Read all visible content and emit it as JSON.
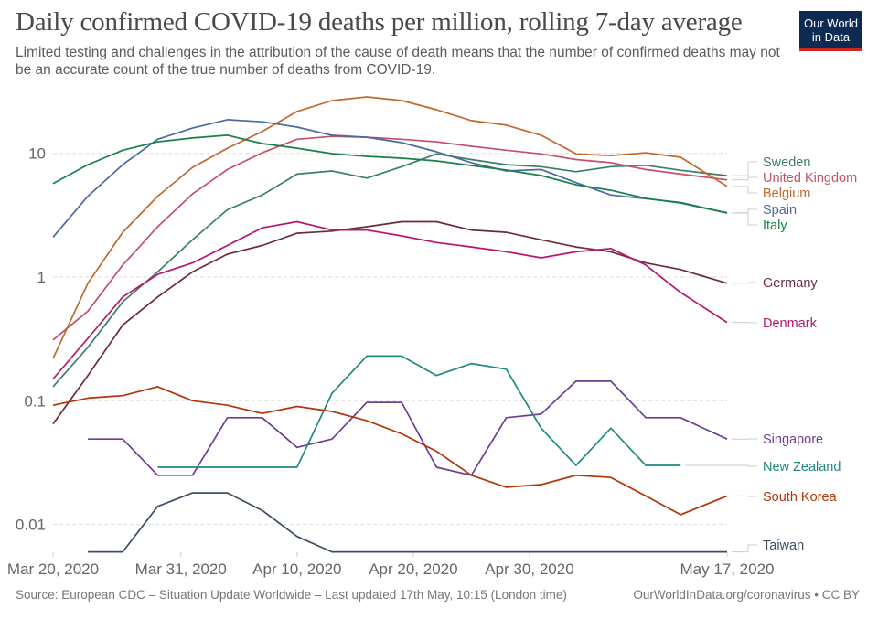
{
  "title": "Daily confirmed COVID-19 deaths per million, rolling 7-day average",
  "subtitle": "Limited testing and challenges in the attribution of the cause of death means that the number of confirmed deaths may not be an accurate count of the true number of deaths from COVID-19.",
  "logo": "Our World in Data",
  "logo_colors": {
    "background": "#0d2a52",
    "stripe": "#ce261e"
  },
  "footer": {
    "source": "Source: European CDC – Situation Update Worldwide – Last updated 17th May, 10:15 (London time)",
    "url": "OurWorldInData.org/coronavirus • CC BY"
  },
  "chart_data": {
    "type": "line",
    "title": "Daily confirmed COVID-19 deaths per million, rolling 7-day average",
    "xlabel": "",
    "ylabel": "",
    "y_scale": "log",
    "grid": "horizontal dashed",
    "legend": "right (line-end labels)",
    "x_tick_labels": [
      "Mar 20, 2020",
      "Mar 31, 2020",
      "Apr 10, 2020",
      "Apr 20, 2020",
      "Apr 30, 2020",
      "May 17, 2020"
    ],
    "x_ticks": [
      "2020-03-20",
      "2020-03-31",
      "2020-04-10",
      "2020-04-20",
      "2020-04-30",
      "2020-05-17"
    ],
    "y_tick_labels": [
      "10",
      "1",
      "0.1",
      "0.01"
    ],
    "y_ticks": [
      10,
      1,
      0.1,
      0.01
    ],
    "x": [
      "2020-03-20",
      "2020-03-23",
      "2020-03-26",
      "2020-03-29",
      "2020-04-01",
      "2020-04-04",
      "2020-04-07",
      "2020-04-10",
      "2020-04-13",
      "2020-04-16",
      "2020-04-19",
      "2020-04-22",
      "2020-04-25",
      "2020-04-28",
      "2020-05-01",
      "2020-05-04",
      "2020-05-07",
      "2020-05-10",
      "2020-05-13",
      "2020-05-17"
    ],
    "series": [
      {
        "name": "Sweden",
        "color": "#3a7f68",
        "values": [
          0.13,
          0.27,
          0.63,
          1.1,
          2.0,
          3.5,
          4.6,
          6.8,
          7.2,
          6.3,
          7.8,
          9.9,
          8.9,
          8.1,
          7.8,
          7.1,
          7.8,
          8.0,
          7.3,
          6.6
        ]
      },
      {
        "name": "United Kingdom",
        "color": "#c4506a",
        "values": [
          0.31,
          0.53,
          1.25,
          2.55,
          4.7,
          7.4,
          10.1,
          13.0,
          13.7,
          13.5,
          13.0,
          12.4,
          11.4,
          10.6,
          9.9,
          8.9,
          8.4,
          7.4,
          6.8,
          6.1
        ]
      },
      {
        "name": "Belgium",
        "color": "#c0692b",
        "values": [
          0.22,
          0.89,
          2.3,
          4.5,
          7.7,
          11.0,
          15.0,
          21.8,
          26.7,
          28.6,
          26.7,
          22.5,
          18.4,
          16.9,
          14.0,
          9.9,
          9.6,
          10.1,
          9.3,
          5.4
        ]
      },
      {
        "name": "Spain",
        "color": "#4c6a9c",
        "values": [
          2.1,
          4.5,
          8.1,
          13.0,
          16.0,
          18.7,
          18.0,
          16.3,
          14.0,
          13.5,
          12.2,
          10.3,
          8.4,
          7.2,
          7.4,
          5.8,
          4.6,
          4.3,
          4.0,
          3.3
        ]
      },
      {
        "name": "Italy",
        "color": "#16824a",
        "values": [
          5.7,
          8.1,
          10.6,
          12.4,
          13.3,
          14.0,
          12.0,
          11.0,
          9.95,
          9.46,
          9.14,
          8.69,
          7.98,
          7.32,
          6.61,
          5.57,
          5.03,
          4.32,
          3.97,
          3.29
        ]
      },
      {
        "name": "Germany",
        "color": "#6b2d3a",
        "values": [
          0.065,
          0.16,
          0.41,
          0.69,
          1.1,
          1.53,
          1.8,
          2.26,
          2.35,
          2.55,
          2.8,
          2.8,
          2.4,
          2.3,
          2.0,
          1.75,
          1.6,
          1.3,
          1.15,
          0.89
        ]
      },
      {
        "name": "Denmark",
        "color": "#b8176d",
        "values": [
          0.15,
          0.32,
          0.69,
          1.05,
          1.3,
          1.8,
          2.5,
          2.8,
          2.4,
          2.4,
          2.15,
          1.9,
          1.75,
          1.6,
          1.43,
          1.6,
          1.7,
          1.25,
          0.75,
          0.43
        ]
      },
      {
        "name": "Singapore",
        "color": "#6d3e91",
        "values": [
          null,
          0.049,
          0.049,
          0.025,
          0.025,
          0.073,
          0.073,
          0.042,
          0.049,
          0.097,
          0.097,
          0.029,
          0.025,
          0.073,
          0.078,
          0.144,
          0.144,
          0.073,
          0.073,
          0.049
        ]
      },
      {
        "name": "New Zealand",
        "color": "#1f8a80",
        "values": [
          null,
          null,
          null,
          0.029,
          0.029,
          0.029,
          0.029,
          0.029,
          0.115,
          0.23,
          0.23,
          0.16,
          0.2,
          0.18,
          0.06,
          0.03,
          0.06,
          0.03,
          0.03,
          null
        ]
      },
      {
        "name": "South Korea",
        "color": "#b13507",
        "values": [
          0.092,
          0.105,
          0.11,
          0.13,
          0.1,
          0.092,
          0.079,
          0.09,
          0.082,
          0.069,
          0.054,
          0.039,
          0.025,
          0.02,
          0.021,
          0.025,
          0.024,
          0.017,
          0.012,
          0.017
        ]
      },
      {
        "name": "Taiwan",
        "color": "#3c4e66",
        "values": [
          null,
          0.006,
          0.006,
          0.014,
          0.018,
          0.018,
          0.013,
          0.008,
          0.006,
          0.006,
          0.006,
          0.006,
          0.006,
          0.006,
          0.006,
          0.006,
          0.006,
          0.006,
          0.006,
          0.006
        ]
      }
    ]
  }
}
